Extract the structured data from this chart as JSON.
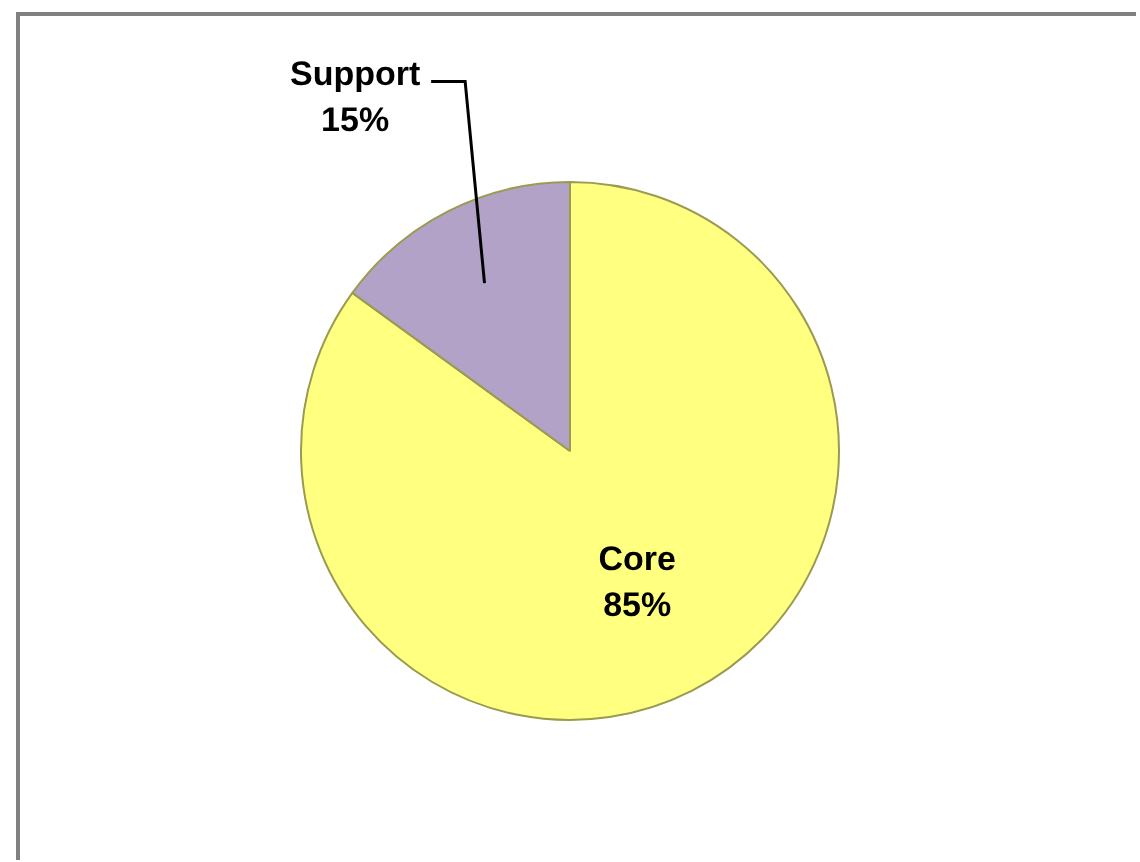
{
  "chart_data": {
    "type": "pie",
    "categories": [
      "Core",
      "Support"
    ],
    "values": [
      85,
      15
    ],
    "colors": [
      "#ffff80",
      "#b3a2c7"
    ],
    "value_labels": [
      "85%",
      "15%"
    ],
    "legend": false
  }
}
